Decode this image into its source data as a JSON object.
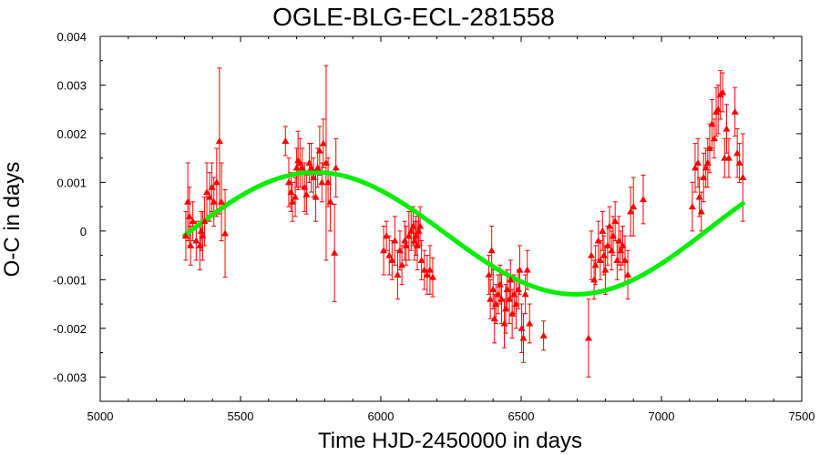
{
  "chart_data": {
    "type": "scatter",
    "title": "OGLE-BLG-ECL-281558",
    "xlabel": "Time HJD-2450000 in days",
    "ylabel": "O-C in days",
    "xlim": [
      5000,
      7500
    ],
    "ylim": [
      -0.0035,
      0.004
    ],
    "x_ticks": [
      "5000",
      "5500",
      "6000",
      "6500",
      "7000",
      "7500"
    ],
    "y_ticks": [
      "-0.003",
      "-0.002",
      "-0.001",
      "0",
      "0.001",
      "0.002",
      "0.003",
      "0.004"
    ],
    "grid": false,
    "legend": "none",
    "colors": {
      "points": "#ff0000",
      "fit": "#00ee00"
    },
    "points": [
      {
        "x": 5305,
        "y": -0.0001,
        "err": 0.0005
      },
      {
        "x": 5312,
        "y": 0.0006,
        "err": 0.0008
      },
      {
        "x": 5318,
        "y": 0.0003,
        "err": 0.0006
      },
      {
        "x": 5322,
        "y": -0.0003,
        "err": 0.0004
      },
      {
        "x": 5330,
        "y": 0.0002,
        "err": 0.0004
      },
      {
        "x": 5342,
        "y": -0.0002,
        "err": 0.0004
      },
      {
        "x": 5355,
        "y": -0.0003,
        "err": 0.0005
      },
      {
        "x": 5360,
        "y": 0.0,
        "err": 0.0004
      },
      {
        "x": 5365,
        "y": -0.0001,
        "err": 0.0005
      },
      {
        "x": 5372,
        "y": 0.0002,
        "err": 0.0005
      },
      {
        "x": 5380,
        "y": 0.0008,
        "err": 0.0006
      },
      {
        "x": 5390,
        "y": 0.0007,
        "err": 0.0005
      },
      {
        "x": 5398,
        "y": 0.0009,
        "err": 0.0005
      },
      {
        "x": 5405,
        "y": 0.0006,
        "err": 0.0005
      },
      {
        "x": 5415,
        "y": 0.001,
        "err": 0.0007
      },
      {
        "x": 5425,
        "y": 0.00185,
        "err": 0.0015
      },
      {
        "x": 5432,
        "y": 0.0006,
        "err": 0.0008
      },
      {
        "x": 5445,
        "y": -5e-05,
        "err": 0.0009
      },
      {
        "x": 5660,
        "y": 0.00185,
        "err": 0.0003
      },
      {
        "x": 5672,
        "y": 0.001,
        "err": 0.0005
      },
      {
        "x": 5680,
        "y": 0.0008,
        "err": 0.0004
      },
      {
        "x": 5685,
        "y": 0.0006,
        "err": 0.0004
      },
      {
        "x": 5695,
        "y": 0.0007,
        "err": 0.0004
      },
      {
        "x": 5700,
        "y": 0.0013,
        "err": 0.0004
      },
      {
        "x": 5705,
        "y": 0.00145,
        "err": 0.0006
      },
      {
        "x": 5712,
        "y": 0.0014,
        "err": 0.0005
      },
      {
        "x": 5720,
        "y": 0.0013,
        "err": 0.0004
      },
      {
        "x": 5728,
        "y": 0.0009,
        "err": 0.0005
      },
      {
        "x": 5735,
        "y": 0.00075,
        "err": 0.0004
      },
      {
        "x": 5745,
        "y": 0.0014,
        "err": 0.0004
      },
      {
        "x": 5752,
        "y": 0.0013,
        "err": 0.0005
      },
      {
        "x": 5760,
        "y": 0.0011,
        "err": 0.0004
      },
      {
        "x": 5768,
        "y": 0.0007,
        "err": 0.0005
      },
      {
        "x": 5775,
        "y": 0.0013,
        "err": 0.0004
      },
      {
        "x": 5782,
        "y": 0.00165,
        "err": 0.0005
      },
      {
        "x": 5790,
        "y": 0.001,
        "err": 0.0004
      },
      {
        "x": 5795,
        "y": 0.0018,
        "err": 0.0005
      },
      {
        "x": 5805,
        "y": 0.0014,
        "err": 0.002
      },
      {
        "x": 5812,
        "y": 0.001,
        "err": 0.0005
      },
      {
        "x": 5820,
        "y": 0.0006,
        "err": 0.0006
      },
      {
        "x": 5835,
        "y": -0.00045,
        "err": 0.001
      },
      {
        "x": 5840,
        "y": 0.0013,
        "err": 0.0006
      },
      {
        "x": 6010,
        "y": -0.0004,
        "err": 0.0005
      },
      {
        "x": 6020,
        "y": -0.0001,
        "err": 0.0003
      },
      {
        "x": 6030,
        "y": -0.0005,
        "err": 0.0004
      },
      {
        "x": 6040,
        "y": -0.0006,
        "err": 0.0004
      },
      {
        "x": 6050,
        "y": -0.0002,
        "err": 0.0005
      },
      {
        "x": 6060,
        "y": -0.0009,
        "err": 0.0005
      },
      {
        "x": 6068,
        "y": -0.0004,
        "err": 0.0004
      },
      {
        "x": 6075,
        "y": -0.0007,
        "err": 0.0004
      },
      {
        "x": 6085,
        "y": -0.0002,
        "err": 0.0004
      },
      {
        "x": 6090,
        "y": -0.0003,
        "err": 0.0004
      },
      {
        "x": 6100,
        "y": -0.0001,
        "err": 0.0005
      },
      {
        "x": 6108,
        "y": 0.0,
        "err": 0.0004
      },
      {
        "x": 6115,
        "y": 0.0001,
        "err": 0.0004
      },
      {
        "x": 6120,
        "y": -0.0002,
        "err": 0.0004
      },
      {
        "x": 6125,
        "y": -0.0001,
        "err": 0.0004
      },
      {
        "x": 6130,
        "y": -0.0003,
        "err": 0.0005
      },
      {
        "x": 6135,
        "y": 0.0,
        "err": 0.0003
      },
      {
        "x": 6140,
        "y": 0.0001,
        "err": 0.0004
      },
      {
        "x": 6145,
        "y": -0.0006,
        "err": 0.0004
      },
      {
        "x": 6155,
        "y": -0.0008,
        "err": 0.0004
      },
      {
        "x": 6165,
        "y": -0.0009,
        "err": 0.0004
      },
      {
        "x": 6175,
        "y": -0.0008,
        "err": 0.0005
      },
      {
        "x": 6185,
        "y": -0.00095,
        "err": 0.0004
      },
      {
        "x": 6385,
        "y": -0.0009,
        "err": 0.0004
      },
      {
        "x": 6390,
        "y": -0.0014,
        "err": 0.0004
      },
      {
        "x": 6395,
        "y": -0.0004,
        "err": 0.0005
      },
      {
        "x": 6400,
        "y": -0.0012,
        "err": 0.0004
      },
      {
        "x": 6405,
        "y": -0.0018,
        "err": 0.0005
      },
      {
        "x": 6410,
        "y": -0.0015,
        "err": 0.0004
      },
      {
        "x": 6418,
        "y": -0.0013,
        "err": 0.0004
      },
      {
        "x": 6425,
        "y": -0.0011,
        "err": 0.0004
      },
      {
        "x": 6430,
        "y": -0.0014,
        "err": 0.0005
      },
      {
        "x": 6440,
        "y": -0.0019,
        "err": 0.0005
      },
      {
        "x": 6445,
        "y": -0.0016,
        "err": 0.0005
      },
      {
        "x": 6450,
        "y": -0.0012,
        "err": 0.0004
      },
      {
        "x": 6458,
        "y": -0.0014,
        "err": 0.0005
      },
      {
        "x": 6462,
        "y": -0.001,
        "err": 0.0004
      },
      {
        "x": 6468,
        "y": -0.0017,
        "err": 0.0005
      },
      {
        "x": 6475,
        "y": -0.0013,
        "err": 0.0004
      },
      {
        "x": 6482,
        "y": -0.0015,
        "err": 0.0005
      },
      {
        "x": 6490,
        "y": -0.0012,
        "err": 0.0004
      },
      {
        "x": 6495,
        "y": -0.0008,
        "err": 0.0005
      },
      {
        "x": 6502,
        "y": -0.002,
        "err": 0.0005
      },
      {
        "x": 6508,
        "y": -0.0022,
        "err": 0.0005
      },
      {
        "x": 6515,
        "y": -0.0013,
        "err": 0.0004
      },
      {
        "x": 6522,
        "y": -0.0008,
        "err": 0.0004
      },
      {
        "x": 6530,
        "y": -0.0019,
        "err": 0.0004
      },
      {
        "x": 6580,
        "y": -0.00215,
        "err": 0.0003
      },
      {
        "x": 6740,
        "y": -0.0022,
        "err": 0.0008
      },
      {
        "x": 6750,
        "y": -0.0005,
        "err": 0.0005
      },
      {
        "x": 6760,
        "y": -0.001,
        "err": 0.0004
      },
      {
        "x": 6765,
        "y": -0.0007,
        "err": 0.0004
      },
      {
        "x": 6775,
        "y": -0.0002,
        "err": 0.0004
      },
      {
        "x": 6782,
        "y": -0.0006,
        "err": 0.0004
      },
      {
        "x": 6790,
        "y": 0.0,
        "err": 0.0004
      },
      {
        "x": 6795,
        "y": -0.0005,
        "err": 0.0004
      },
      {
        "x": 6800,
        "y": -0.0008,
        "err": 0.0005
      },
      {
        "x": 6808,
        "y": -0.0003,
        "err": 0.0004
      },
      {
        "x": 6815,
        "y": 0.0001,
        "err": 0.0004
      },
      {
        "x": 6822,
        "y": -0.0004,
        "err": 0.0004
      },
      {
        "x": 6828,
        "y": -0.0001,
        "err": 0.0004
      },
      {
        "x": 6835,
        "y": 0.0002,
        "err": 0.0004
      },
      {
        "x": 6842,
        "y": -0.0006,
        "err": 0.0004
      },
      {
        "x": 6848,
        "y": -0.0002,
        "err": 0.0005
      },
      {
        "x": 6855,
        "y": -0.0004,
        "err": 0.0004
      },
      {
        "x": 6862,
        "y": -0.0003,
        "err": 0.0004
      },
      {
        "x": 6870,
        "y": -0.0006,
        "err": 0.0005
      },
      {
        "x": 6880,
        "y": -0.0009,
        "err": 0.0005
      },
      {
        "x": 6890,
        "y": 0.0004,
        "err": 0.0005
      },
      {
        "x": 6900,
        "y": 0.0005,
        "err": 0.0006
      },
      {
        "x": 6935,
        "y": 0.00065,
        "err": 0.0005
      },
      {
        "x": 7110,
        "y": 0.0005,
        "err": 0.0005
      },
      {
        "x": 7120,
        "y": 0.0013,
        "err": 0.0005
      },
      {
        "x": 7130,
        "y": 0.0014,
        "err": 0.0005
      },
      {
        "x": 7135,
        "y": 0.0007,
        "err": 0.0004
      },
      {
        "x": 7142,
        "y": 0.0004,
        "err": 0.0004
      },
      {
        "x": 7150,
        "y": 0.0011,
        "err": 0.0005
      },
      {
        "x": 7158,
        "y": 0.0013,
        "err": 0.0004
      },
      {
        "x": 7165,
        "y": 0.0014,
        "err": 0.0005
      },
      {
        "x": 7172,
        "y": 0.0017,
        "err": 0.0005
      },
      {
        "x": 7180,
        "y": 0.0022,
        "err": 0.0005
      },
      {
        "x": 7188,
        "y": 0.0019,
        "err": 0.0004
      },
      {
        "x": 7195,
        "y": 0.00245,
        "err": 0.0005
      },
      {
        "x": 7202,
        "y": 0.0025,
        "err": 0.0005
      },
      {
        "x": 7210,
        "y": 0.0028,
        "err": 0.0005
      },
      {
        "x": 7218,
        "y": 0.00285,
        "err": 0.0004
      },
      {
        "x": 7225,
        "y": 0.0015,
        "err": 0.0004
      },
      {
        "x": 7232,
        "y": 0.0021,
        "err": 0.0005
      },
      {
        "x": 7240,
        "y": 0.0015,
        "err": 0.0004
      },
      {
        "x": 7262,
        "y": 0.00245,
        "err": 0.0005
      },
      {
        "x": 7270,
        "y": 0.0016,
        "err": 0.0005
      },
      {
        "x": 7278,
        "y": 0.0014,
        "err": 0.0004
      },
      {
        "x": 7290,
        "y": 0.0011,
        "err": 0.0009
      }
    ]
  }
}
